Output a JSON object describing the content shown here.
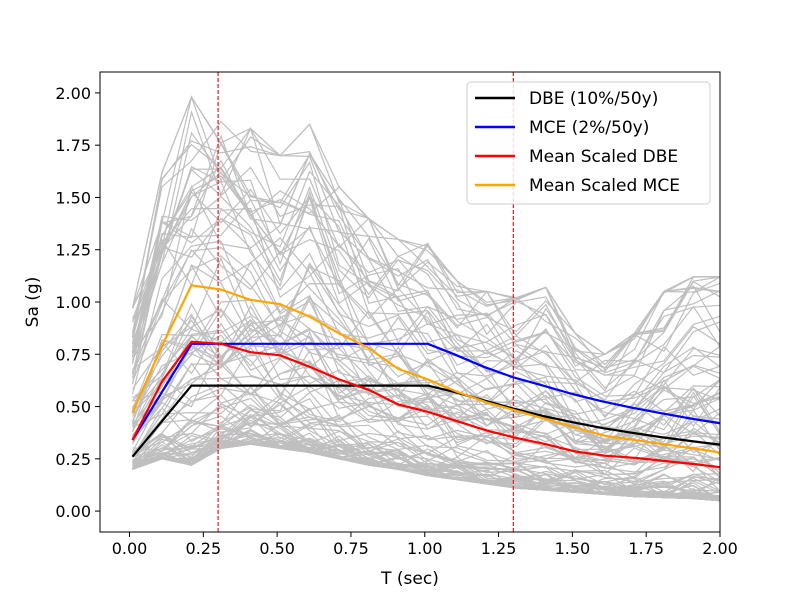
{
  "chart_data": {
    "type": "line",
    "title": "",
    "xlabel": "T (sec)",
    "ylabel": "Sa (g)",
    "xlim": [
      -0.1,
      2.0
    ],
    "ylim": [
      -0.1,
      2.1
    ],
    "xticks": [
      0.0,
      0.25,
      0.5,
      0.75,
      1.0,
      1.25,
      1.5,
      1.75,
      2.0
    ],
    "yticks": [
      0.0,
      0.25,
      0.5,
      0.75,
      1.0,
      1.25,
      1.5,
      1.75,
      2.0
    ],
    "xtick_labels": [
      "0.00",
      "0.25",
      "0.50",
      "0.75",
      "1.00",
      "1.25",
      "1.50",
      "1.75",
      "2.00"
    ],
    "ytick_labels": [
      "0.00",
      "0.25",
      "0.50",
      "0.75",
      "1.00",
      "1.25",
      "1.50",
      "1.75",
      "2.00"
    ],
    "grid": false,
    "legend_position": "top-right",
    "vertical_lines": [
      {
        "x": 0.3,
        "color": "#e31a1c",
        "style": "dashed"
      },
      {
        "x": 1.3,
        "color": "#e31a1c",
        "style": "dashed"
      }
    ],
    "series": [
      {
        "name": "DBE (10%/50y)",
        "color": "#000000",
        "x": [
          0.01,
          0.21,
          1.01,
          1.1,
          1.2,
          1.3,
          1.4,
          1.5,
          1.6,
          1.7,
          1.8,
          1.9,
          2.0
        ],
        "y": [
          0.26,
          0.6,
          0.6,
          0.57,
          0.53,
          0.49,
          0.455,
          0.425,
          0.398,
          0.375,
          0.354,
          0.335,
          0.318
        ]
      },
      {
        "name": "MCE (2%/50y)",
        "color": "#0000ff",
        "x": [
          0.01,
          0.21,
          1.01,
          1.1,
          1.2,
          1.3,
          1.4,
          1.5,
          1.6,
          1.7,
          1.8,
          1.9,
          2.0
        ],
        "y": [
          0.34,
          0.8,
          0.8,
          0.75,
          0.69,
          0.64,
          0.6,
          0.56,
          0.525,
          0.495,
          0.468,
          0.443,
          0.42
        ]
      },
      {
        "name": "Mean Scaled DBE",
        "color": "#ff0000",
        "x": [
          0.01,
          0.11,
          0.21,
          0.31,
          0.41,
          0.51,
          0.61,
          0.71,
          0.81,
          0.91,
          1.01,
          1.11,
          1.21,
          1.31,
          1.41,
          1.51,
          1.61,
          1.71,
          1.81,
          1.91,
          2.0
        ],
        "y": [
          0.34,
          0.62,
          0.81,
          0.8,
          0.76,
          0.745,
          0.69,
          0.63,
          0.58,
          0.51,
          0.475,
          0.43,
          0.385,
          0.35,
          0.32,
          0.285,
          0.265,
          0.255,
          0.24,
          0.225,
          0.21
        ]
      },
      {
        "name": "Mean Scaled MCE",
        "color": "#ffa500",
        "x": [
          0.01,
          0.11,
          0.21,
          0.31,
          0.41,
          0.51,
          0.61,
          0.71,
          0.81,
          0.91,
          1.01,
          1.11,
          1.21,
          1.31,
          1.41,
          1.51,
          1.61,
          1.71,
          1.81,
          1.91,
          2.0
        ],
        "y": [
          0.47,
          0.79,
          1.08,
          1.06,
          1.01,
          0.99,
          0.93,
          0.85,
          0.78,
          0.68,
          0.63,
          0.57,
          0.52,
          0.48,
          0.44,
          0.4,
          0.36,
          0.34,
          0.32,
          0.3,
          0.28
        ]
      }
    ],
    "background_records": {
      "color": "#bfbfbf",
      "count": 110,
      "x": [
        0.01,
        0.11,
        0.21,
        0.31,
        0.41,
        0.51,
        0.61,
        0.71,
        0.81,
        0.91,
        1.01,
        1.11,
        1.21,
        1.31,
        1.41,
        1.51,
        1.61,
        1.71,
        1.81,
        1.91,
        2.0
      ],
      "y_min": [
        0.2,
        0.25,
        0.22,
        0.3,
        0.32,
        0.3,
        0.28,
        0.25,
        0.22,
        0.2,
        0.17,
        0.15,
        0.13,
        0.11,
        0.1,
        0.09,
        0.08,
        0.07,
        0.065,
        0.06,
        0.05
      ],
      "y_max": [
        0.97,
        1.62,
        1.98,
        1.92,
        1.83,
        1.7,
        1.85,
        1.55,
        1.4,
        1.3,
        1.28,
        1.1,
        1.05,
        1.02,
        1.07,
        0.85,
        0.75,
        0.85,
        1.05,
        1.12,
        1.12
      ]
    }
  }
}
